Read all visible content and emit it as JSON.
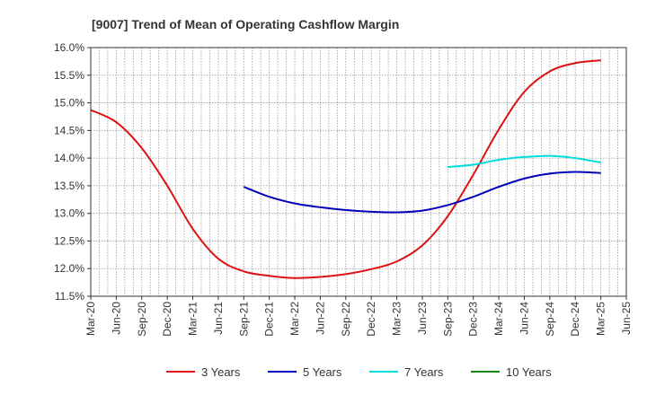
{
  "chart_data": {
    "type": "line",
    "title": "[9007]  Trend of Mean of Operating Cashflow Margin",
    "xlabel": "",
    "ylabel": "",
    "y_tick_labels": [
      "11.5%",
      "12.0%",
      "12.5%",
      "13.0%",
      "13.5%",
      "14.0%",
      "14.5%",
      "15.0%",
      "15.5%",
      "16.0%"
    ],
    "x_tick_labels": [
      "Mar-20",
      "Jun-20",
      "Sep-20",
      "Dec-20",
      "Mar-21",
      "Jun-21",
      "Sep-21",
      "Dec-21",
      "Mar-22",
      "Jun-22",
      "Sep-22",
      "Dec-22",
      "Mar-23",
      "Jun-23",
      "Sep-23",
      "Dec-23",
      "Mar-24",
      "Jun-24",
      "Sep-24",
      "Dec-24",
      "Mar-25",
      "Jun-25"
    ],
    "ylim": [
      11.5,
      16.0
    ],
    "grid": true,
    "legend_position": "bottom",
    "series": [
      {
        "name": "3 Years",
        "color": "#dd1111",
        "values": [
          14.87,
          14.65,
          14.18,
          13.5,
          12.72,
          12.18,
          11.95,
          11.87,
          11.83,
          11.85,
          11.9,
          11.99,
          12.13,
          12.42,
          12.95,
          13.7,
          14.52,
          15.2,
          15.57,
          15.72,
          15.77,
          null
        ]
      },
      {
        "name": "5 Years",
        "color": "#0000bb",
        "values": [
          null,
          null,
          null,
          null,
          null,
          null,
          13.48,
          13.3,
          13.18,
          13.11,
          13.06,
          13.03,
          13.02,
          13.05,
          13.15,
          13.3,
          13.48,
          13.63,
          13.72,
          13.75,
          13.73,
          null
        ]
      },
      {
        "name": "7 Years",
        "color": "#00dddd",
        "values": [
          null,
          null,
          null,
          null,
          null,
          null,
          null,
          null,
          null,
          null,
          null,
          null,
          null,
          null,
          13.84,
          13.88,
          13.97,
          14.02,
          14.04,
          14.0,
          13.92,
          null
        ]
      },
      {
        "name": "10 Years",
        "color": "#118811",
        "values": [
          null,
          null,
          null,
          null,
          null,
          null,
          null,
          null,
          null,
          null,
          null,
          null,
          null,
          null,
          null,
          null,
          null,
          null,
          null,
          null,
          null,
          null
        ]
      }
    ]
  }
}
